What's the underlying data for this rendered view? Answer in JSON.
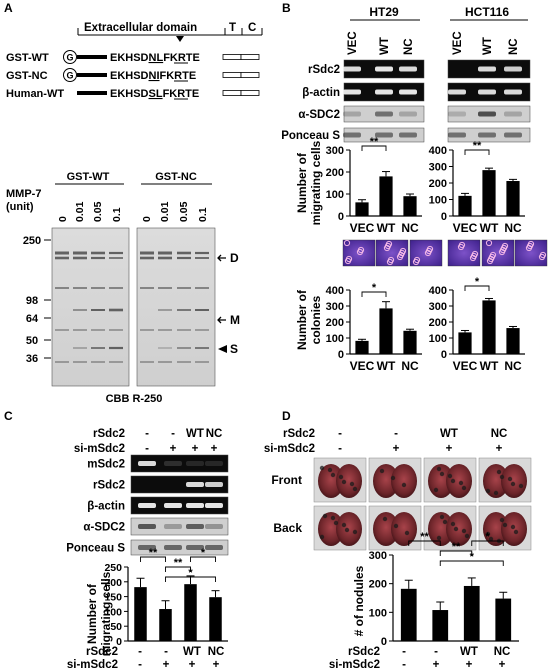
{
  "panels": {
    "A": {
      "letter": "A",
      "domain_labels": [
        "Extracellular domain",
        "T",
        "C"
      ],
      "constructs": [
        {
          "tag": "G",
          "name": "GST-WT",
          "seq_pre": "EKHSD",
          "seq_mut": "NL",
          "seq_post": "FKRTE"
        },
        {
          "tag": "G",
          "name": "GST-NC",
          "seq_pre": "EKHSD",
          "seq_mut": "NI",
          "seq_post": "FKRTE"
        },
        {
          "tag": "",
          "name": "Human-WT",
          "seq_pre": "EKHSD",
          "seq_mut": "SL",
          "seq_post": "FKRTE"
        }
      ],
      "gel_groups": [
        "GST-WT",
        "GST-NC"
      ],
      "mmp_label_1": "MMP-7",
      "mmp_label_2": "(unit)",
      "doses": [
        "0",
        "0.01",
        "0.05",
        "0.1",
        "0",
        "0.01",
        "0.05",
        "0.1"
      ],
      "mw_markers": [
        "250",
        "98",
        "64",
        "50",
        "36"
      ],
      "band_labels": [
        "D",
        "M",
        "S"
      ],
      "stain": "CBB R-250"
    },
    "B": {
      "letter": "B",
      "cell_lines": [
        "HT29",
        "HCT116"
      ],
      "lanes": [
        "VEC",
        "WT",
        "NC"
      ],
      "blot_rows": [
        "rSdc2",
        "β-actin",
        "α-SDC2",
        "Ponceau S"
      ],
      "migration_ylabel_1": "Number of",
      "migration_ylabel_2": "migrating cells",
      "colony_ylabel_1": "Number of",
      "colony_ylabel_2": "colonies"
    },
    "C": {
      "letter": "C",
      "treat_rows": [
        {
          "name": "rSdc2",
          "values": [
            "-",
            "-",
            "WT",
            "NC"
          ]
        },
        {
          "name": "si-mSdc2",
          "values": [
            "-",
            "+",
            "+",
            "+"
          ]
        }
      ],
      "blot_rows": [
        "mSdc2",
        "rSdc2",
        "β-actin",
        "α-SDC2",
        "Ponceau S"
      ],
      "ylabel_1": "Number of",
      "ylabel_2": "migrating cells"
    },
    "D": {
      "letter": "D",
      "treat_rows": [
        {
          "name": "rSdc2",
          "values": [
            "-",
            "-",
            "WT",
            "NC"
          ]
        },
        {
          "name": "si-mSdc2",
          "values": [
            "-",
            "+",
            "+",
            "+"
          ]
        }
      ],
      "view_rows": [
        "Front",
        "Back"
      ],
      "ylabel": "# of nodules"
    }
  },
  "chart_data": [
    {
      "id": "B-migration-HT29",
      "type": "bar",
      "categories": [
        "VEC",
        "WT",
        "NC"
      ],
      "values": [
        62,
        180,
        90
      ],
      "errors": [
        12,
        22,
        10
      ],
      "ylim": [
        0,
        300
      ],
      "yticks": [
        0,
        100,
        200,
        300
      ],
      "sig": [
        {
          "from": 0,
          "to": 1,
          "label": "**"
        }
      ]
    },
    {
      "id": "B-migration-HCT116",
      "type": "bar",
      "categories": [
        "VEC",
        "WT",
        "NC"
      ],
      "values": [
        122,
        278,
        212
      ],
      "errors": [
        15,
        12,
        10
      ],
      "ylim": [
        0,
        400
      ],
      "yticks": [
        0,
        100,
        200,
        300,
        400
      ],
      "sig": [
        {
          "from": 0,
          "to": 1,
          "label": "**"
        }
      ]
    },
    {
      "id": "B-colonies-HT29",
      "type": "bar",
      "categories": [
        "VEC",
        "WT",
        "NC"
      ],
      "values": [
        82,
        285,
        145
      ],
      "errors": [
        10,
        42,
        10
      ],
      "ylim": [
        0,
        400
      ],
      "yticks": [
        0,
        100,
        200,
        300,
        400
      ],
      "sig": [
        {
          "from": 0,
          "to": 1,
          "label": "*"
        }
      ]
    },
    {
      "id": "B-colonies-HCT116",
      "type": "bar",
      "categories": [
        "VEC",
        "WT",
        "NC"
      ],
      "values": [
        135,
        335,
        162
      ],
      "errors": [
        12,
        12,
        10
      ],
      "ylim": [
        0,
        400
      ],
      "yticks": [
        0,
        100,
        200,
        300,
        400
      ],
      "sig": [
        {
          "from": 0,
          "to": 1,
          "label": "*"
        }
      ]
    },
    {
      "id": "C-migration",
      "type": "bar",
      "categories": [
        "1",
        "2",
        "3",
        "4"
      ],
      "values": [
        182,
        108,
        192,
        148
      ],
      "errors": [
        30,
        28,
        28,
        22
      ],
      "ylim": [
        0,
        250
      ],
      "yticks": [
        0,
        50,
        100,
        150,
        200,
        250
      ],
      "sig": [
        {
          "from": 0,
          "to": 1,
          "label": "**"
        },
        {
          "from": 1,
          "to": 2,
          "label": "**"
        },
        {
          "from": 2,
          "to": 3,
          "label": "*"
        },
        {
          "from": 1,
          "to": 3,
          "label": "*"
        }
      ]
    },
    {
      "id": "D-nodules",
      "type": "bar",
      "categories": [
        "1",
        "2",
        "3",
        "4"
      ],
      "values": [
        182,
        108,
        192,
        148
      ],
      "errors": [
        30,
        28,
        28,
        22
      ],
      "ylim": [
        0,
        300
      ],
      "yticks": [
        0,
        100,
        200,
        300
      ],
      "sig": [
        {
          "from": 0,
          "to": 1,
          "label": "**"
        },
        {
          "from": 1,
          "to": 2,
          "label": "**"
        },
        {
          "from": 2,
          "to": 3,
          "label": "*"
        },
        {
          "from": 1,
          "to": 3,
          "label": "*"
        }
      ]
    }
  ],
  "colors": {
    "bar": "#000000",
    "blot_bg": "#111111",
    "band": "#f2f2f2",
    "lung": "#5a1e20",
    "cells": "#6a3aa8"
  }
}
